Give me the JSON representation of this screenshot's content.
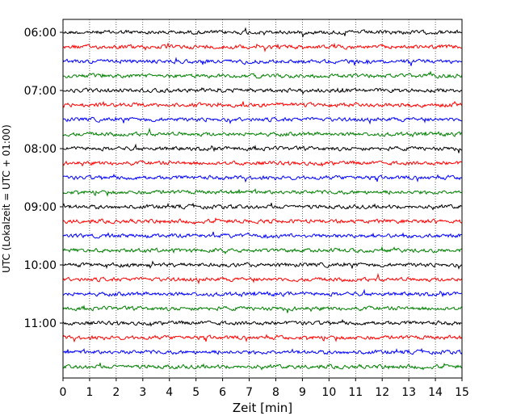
{
  "chart_data": {
    "type": "line",
    "title": "",
    "xlabel": "Zeit  [min]",
    "ylabel": "UTC (Lokalzeit = UTC + 01:00)",
    "xlim": [
      0,
      15
    ],
    "x_ticks": [
      "0",
      "1",
      "2",
      "3",
      "4",
      "5",
      "6",
      "7",
      "8",
      "9",
      "10",
      "11",
      "12",
      "13",
      "14",
      "15"
    ],
    "y_ticks": [
      "06:00",
      "07:00",
      "08:00",
      "09:00",
      "10:00",
      "11:00"
    ],
    "grid": "vertical dotted lines at each minute",
    "trace_interval_min": 15,
    "trace_colors": [
      "#000000",
      "#ff0000",
      "#0000ff",
      "#008000"
    ],
    "series": [
      {
        "start": "06:00",
        "color": "#000000",
        "amplitude": 0.35
      },
      {
        "start": "06:15",
        "color": "#ff0000",
        "amplitude": 0.35
      },
      {
        "start": "06:30",
        "color": "#0000ff",
        "amplitude": 0.35
      },
      {
        "start": "06:45",
        "color": "#008000",
        "amplitude": 0.35
      },
      {
        "start": "07:00",
        "color": "#000000",
        "amplitude": 0.35
      },
      {
        "start": "07:15",
        "color": "#ff0000",
        "amplitude": 0.35
      },
      {
        "start": "07:30",
        "color": "#0000ff",
        "amplitude": 0.35
      },
      {
        "start": "07:45",
        "color": "#008000",
        "amplitude": 0.35
      },
      {
        "start": "08:00",
        "color": "#000000",
        "amplitude": 0.35
      },
      {
        "start": "08:15",
        "color": "#ff0000",
        "amplitude": 0.35
      },
      {
        "start": "08:30",
        "color": "#0000ff",
        "amplitude": 0.35
      },
      {
        "start": "08:45",
        "color": "#008000",
        "amplitude": 0.35
      },
      {
        "start": "09:00",
        "color": "#000000",
        "amplitude": 0.35
      },
      {
        "start": "09:15",
        "color": "#ff0000",
        "amplitude": 0.35
      },
      {
        "start": "09:30",
        "color": "#0000ff",
        "amplitude": 0.35
      },
      {
        "start": "09:45",
        "color": "#008000",
        "amplitude": 0.35
      },
      {
        "start": "10:00",
        "color": "#000000",
        "amplitude": 0.35
      },
      {
        "start": "10:15",
        "color": "#ff0000",
        "amplitude": 0.35
      },
      {
        "start": "10:30",
        "color": "#0000ff",
        "amplitude": 0.35
      },
      {
        "start": "10:45",
        "color": "#008000",
        "amplitude": 0.35
      },
      {
        "start": "11:00",
        "color": "#000000",
        "amplitude": 0.35
      },
      {
        "start": "11:15",
        "color": "#ff0000",
        "amplitude": 0.35
      },
      {
        "start": "11:30",
        "color": "#0000ff",
        "amplitude": 0.35
      },
      {
        "start": "11:45",
        "color": "#008000",
        "amplitude": 0.35
      }
    ]
  }
}
